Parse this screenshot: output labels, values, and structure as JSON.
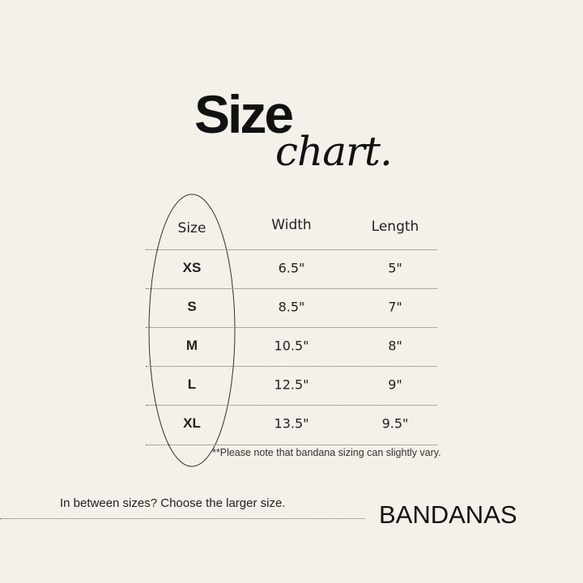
{
  "title": {
    "main": "Size",
    "script": "chart."
  },
  "table": {
    "headers": [
      "Size",
      "Width",
      "Length"
    ],
    "rows": [
      {
        "size": "XS",
        "width": "6.5\"",
        "length": "5\""
      },
      {
        "size": "S",
        "width": "8.5\"",
        "length": "7\""
      },
      {
        "size": "M",
        "width": "10.5\"",
        "length": "8\""
      },
      {
        "size": "L",
        "width": "12.5\"",
        "length": "9\""
      },
      {
        "size": "XL",
        "width": "13.5\"",
        "length": "9.5\""
      }
    ]
  },
  "note": "**Please note that bandana sizing can slightly vary.",
  "tip": "In between sizes? Choose the larger size.",
  "brand": "BANDANAS"
}
